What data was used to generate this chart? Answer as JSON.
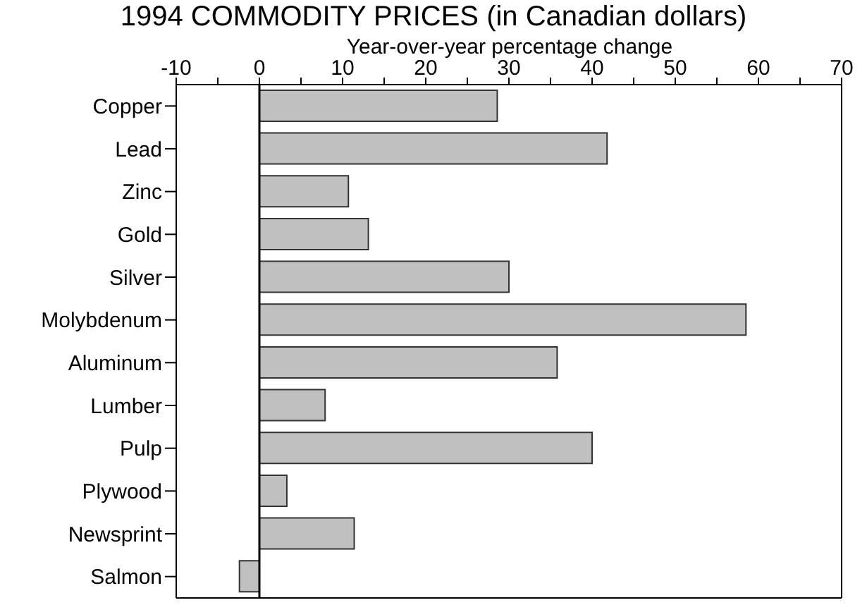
{
  "chart_data": {
    "type": "bar",
    "orientation": "horizontal",
    "title": "1994 COMMODITY PRICES (in Canadian dollars)",
    "xlabel": "Year-over-year percentage change",
    "categories": [
      "Copper",
      "Lead",
      "Zinc",
      "Gold",
      "Silver",
      "Molybdenum",
      "Aluminum",
      "Lumber",
      "Pulp",
      "Plywood",
      "Newsprint",
      "Salmon"
    ],
    "values": [
      28.6,
      41.8,
      10.7,
      13.1,
      30.0,
      58.5,
      35.8,
      7.9,
      40.0,
      3.3,
      11.4,
      -2.4
    ],
    "color": "#c0c0c0",
    "xlim": [
      -10,
      70
    ],
    "xticks": [
      -10,
      {
        "value": -5,
        "label": null
      },
      0,
      {
        "value": 5,
        "label": null
      },
      10,
      {
        "value": 15,
        "label": null
      },
      20,
      {
        "value": 25,
        "label": null
      },
      30,
      {
        "value": 35,
        "label": null
      },
      40,
      {
        "value": 45,
        "label": null
      },
      50,
      {
        "value": 55,
        "label": null
      },
      60,
      {
        "value": 65,
        "label": null
      },
      70
    ],
    "ref_lines": [
      {
        "axis": "x",
        "value": 0,
        "color": "#000000"
      }
    ]
  }
}
